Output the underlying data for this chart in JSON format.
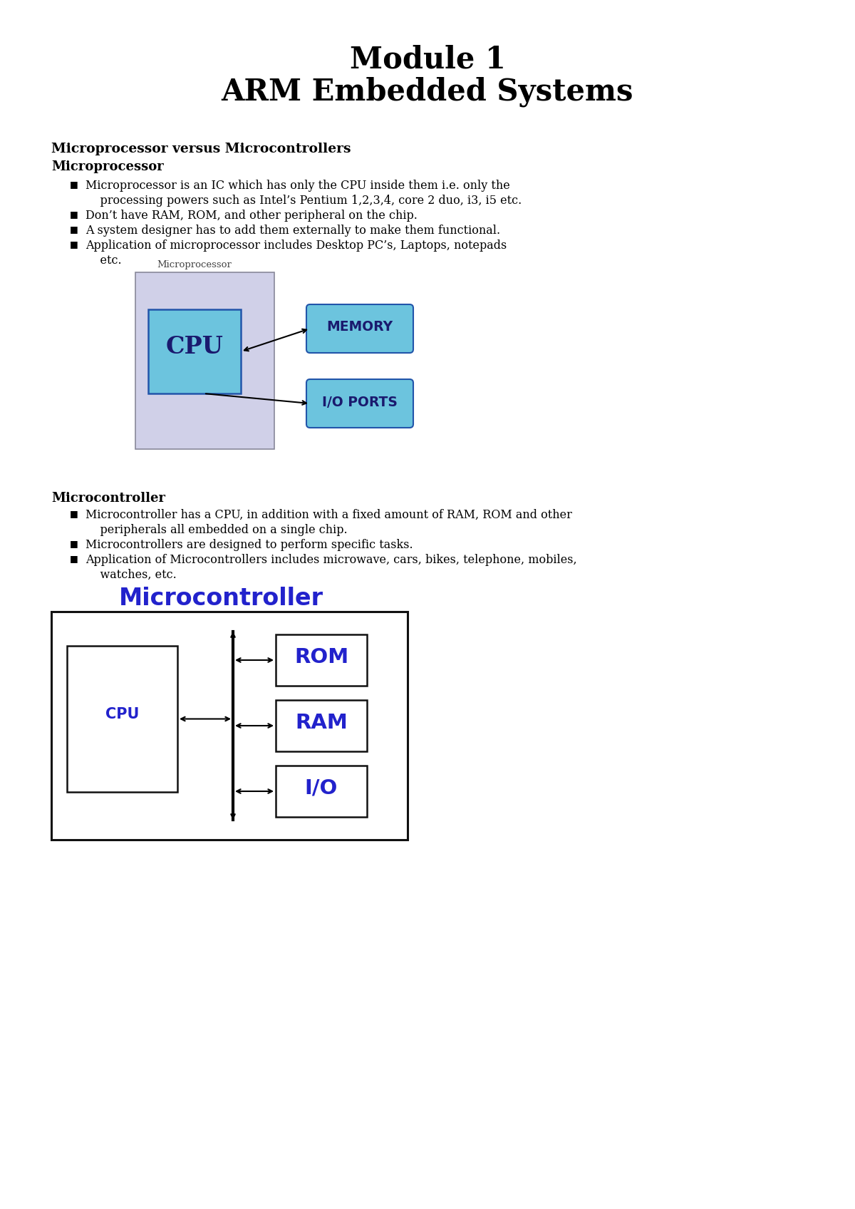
{
  "title_line1": "Module 1",
  "title_line2": "ARM Embedded Systems",
  "section1_heading": "Microprocessor versus Microcontrollers",
  "section1_sub": "Microprocessor",
  "mp_bullet1a": "Microprocessor is an IC which has only the CPU inside them i.e. only the",
  "mp_bullet1b": "    processing powers such as Intel’s Pentium 1,2,3,4, core 2 duo, i3, i5 etc.",
  "mp_bullet2": "Don’t have RAM, ROM, and other peripheral on the chip.",
  "mp_bullet3": "A system designer has to add them externally to make them functional.",
  "mp_bullet4a": "Application of microprocessor includes Desktop PC’s, Laptops, notepads",
  "mp_bullet4b": "etc.",
  "mp_diagram_label": "Microprocessor",
  "mp_cpu_label": "CPU",
  "mp_memory_label": "MEMORY",
  "mp_io_label": "I/O PORTS",
  "mp_outer_box_color": "#d0d0e8",
  "mp_cpu_box_color": "#6cc4de",
  "mp_mem_box_color": "#6cc4de",
  "mp_io_box_color": "#6cc4de",
  "section2_sub": "Microcontroller",
  "mc_bullet1a": "Microcontroller has a CPU, in addition with a fixed amount of RAM, ROM and other",
  "mc_bullet1b": "    peripherals all embedded on a single chip.",
  "mc_bullet2": "Microcontrollers are designed to perform specific tasks.",
  "mc_bullet3a": "Application of Microcontrollers includes microwave, cars, bikes, telephone, mobiles,",
  "mc_bullet3b": "    watches, etc.",
  "mc_diagram_label": "Microcontroller",
  "mc_cpu_label": "CPU",
  "mc_rom_label": "ROM",
  "mc_ram_label": "RAM",
  "mc_io_label": "I/O",
  "background_color": "#ffffff",
  "text_color": "#000000",
  "bullet_char": "■"
}
